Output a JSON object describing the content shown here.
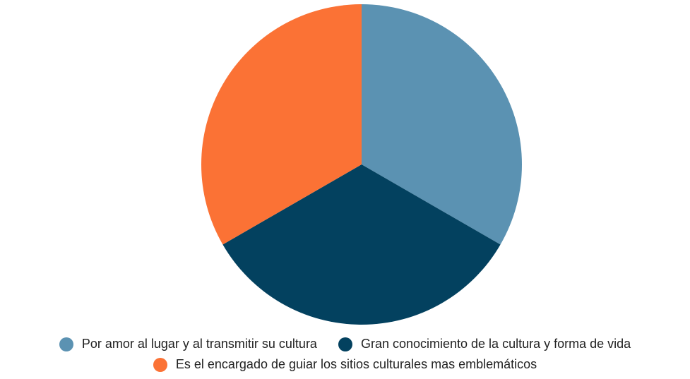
{
  "chart_data": {
    "type": "pie",
    "categories": [
      "Por amor al lugar y al transmitir su cultura",
      "Gran conocimiento de la cultura y forma de vida",
      "Es el encargado de guiar los sitios culturales mas emblemáticos"
    ],
    "values": [
      33.3,
      33.3,
      33.3
    ],
    "colors": [
      "#5b92b2",
      "#03415f",
      "#fb7235"
    ],
    "legend": "bottom"
  }
}
